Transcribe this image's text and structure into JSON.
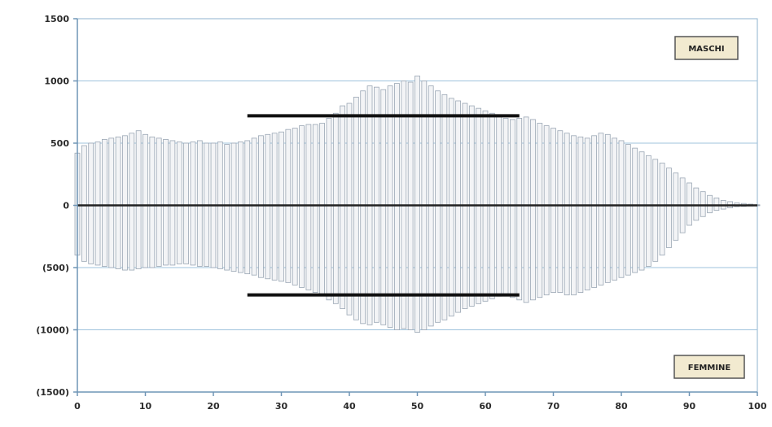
{
  "chart_data": {
    "type": "bar",
    "title": "",
    "xlabel": "",
    "ylabel": "",
    "xlim": [
      0,
      100
    ],
    "ylim": [
      -1500,
      1500
    ],
    "x_ticks": [
      0,
      10,
      20,
      30,
      40,
      50,
      60,
      70,
      80,
      90,
      100
    ],
    "x_tick_labels": [
      "0",
      "10",
      "20",
      "30",
      "40",
      "50",
      "60",
      "70",
      "80",
      "90",
      "100"
    ],
    "y_ticks": [
      1500,
      1000,
      500,
      0,
      -500,
      -1000,
      -1500
    ],
    "y_tick_labels": [
      "1500",
      "1000",
      "500",
      "0",
      "(500)",
      "(1000)",
      "(1500)"
    ],
    "grid": true,
    "series": [
      {
        "name": "MASCHI",
        "color": "#9aa6b4",
        "x": [
          0,
          1,
          2,
          3,
          4,
          5,
          6,
          7,
          8,
          9,
          10,
          11,
          12,
          13,
          14,
          15,
          16,
          17,
          18,
          19,
          20,
          21,
          22,
          23,
          24,
          25,
          26,
          27,
          28,
          29,
          30,
          31,
          32,
          33,
          34,
          35,
          36,
          37,
          38,
          39,
          40,
          41,
          42,
          43,
          44,
          45,
          46,
          47,
          48,
          49,
          50,
          51,
          52,
          53,
          54,
          55,
          56,
          57,
          58,
          59,
          60,
          61,
          62,
          63,
          64,
          65,
          66,
          67,
          68,
          69,
          70,
          71,
          72,
          73,
          74,
          75,
          76,
          77,
          78,
          79,
          80,
          81,
          82,
          83,
          84,
          85,
          86,
          87,
          88,
          89,
          90,
          91,
          92,
          93,
          94,
          95,
          96,
          97,
          98,
          99,
          100
        ],
        "values": [
          420,
          480,
          500,
          510,
          530,
          540,
          550,
          560,
          580,
          600,
          570,
          550,
          540,
          530,
          520,
          510,
          500,
          510,
          520,
          500,
          500,
          510,
          490,
          500,
          510,
          520,
          540,
          560,
          570,
          580,
          590,
          610,
          620,
          640,
          650,
          650,
          660,
          700,
          740,
          800,
          820,
          870,
          920,
          960,
          950,
          930,
          960,
          980,
          1000,
          990,
          1040,
          1000,
          960,
          920,
          890,
          860,
          840,
          820,
          800,
          780,
          760,
          740,
          720,
          700,
          690,
          700,
          710,
          690,
          660,
          640,
          620,
          600,
          580,
          560,
          550,
          540,
          560,
          580,
          570,
          540,
          520,
          490,
          460,
          430,
          400,
          370,
          340,
          300,
          260,
          220,
          180,
          140,
          110,
          80,
          60,
          40,
          30,
          20,
          15,
          10,
          5
        ]
      },
      {
        "name": "FEMMINE",
        "color": "#9aa6b4",
        "x": [
          0,
          1,
          2,
          3,
          4,
          5,
          6,
          7,
          8,
          9,
          10,
          11,
          12,
          13,
          14,
          15,
          16,
          17,
          18,
          19,
          20,
          21,
          22,
          23,
          24,
          25,
          26,
          27,
          28,
          29,
          30,
          31,
          32,
          33,
          34,
          35,
          36,
          37,
          38,
          39,
          40,
          41,
          42,
          43,
          44,
          45,
          46,
          47,
          48,
          49,
          50,
          51,
          52,
          53,
          54,
          55,
          56,
          57,
          58,
          59,
          60,
          61,
          62,
          63,
          64,
          65,
          66,
          67,
          68,
          69,
          70,
          71,
          72,
          73,
          74,
          75,
          76,
          77,
          78,
          79,
          80,
          81,
          82,
          83,
          84,
          85,
          86,
          87,
          88,
          89,
          90,
          91,
          92,
          93,
          94,
          95,
          96,
          97,
          98,
          99,
          100
        ],
        "values": [
          -400,
          -450,
          -470,
          -480,
          -490,
          -500,
          -510,
          -520,
          -520,
          -510,
          -500,
          -500,
          -490,
          -480,
          -480,
          -470,
          -470,
          -480,
          -490,
          -490,
          -500,
          -510,
          -520,
          -530,
          -540,
          -550,
          -560,
          -580,
          -590,
          -600,
          -610,
          -620,
          -640,
          -660,
          -680,
          -700,
          -720,
          -760,
          -790,
          -830,
          -880,
          -920,
          -950,
          -960,
          -940,
          -960,
          -980,
          -1000,
          -990,
          -1000,
          -1020,
          -1000,
          -970,
          -940,
          -920,
          -890,
          -860,
          -830,
          -810,
          -790,
          -770,
          -750,
          -730,
          -720,
          -740,
          -760,
          -780,
          -760,
          -740,
          -720,
          -700,
          -700,
          -720,
          -720,
          -700,
          -680,
          -660,
          -640,
          -620,
          -600,
          -580,
          -560,
          -540,
          -520,
          -490,
          -450,
          -400,
          -340,
          -280,
          -220,
          -160,
          -120,
          -90,
          -60,
          -40,
          -30,
          -20,
          -10,
          -8,
          -5,
          -3
        ]
      }
    ],
    "reference_lines": [
      {
        "y": 720,
        "x_from": 25,
        "x_to": 65
      },
      {
        "y": -720,
        "x_from": 25,
        "x_to": 65
      }
    ],
    "legend": [
      {
        "label": "MASCHI",
        "placement": "top-right"
      },
      {
        "label": "FEMMINE",
        "placement": "bottom-right"
      }
    ]
  }
}
